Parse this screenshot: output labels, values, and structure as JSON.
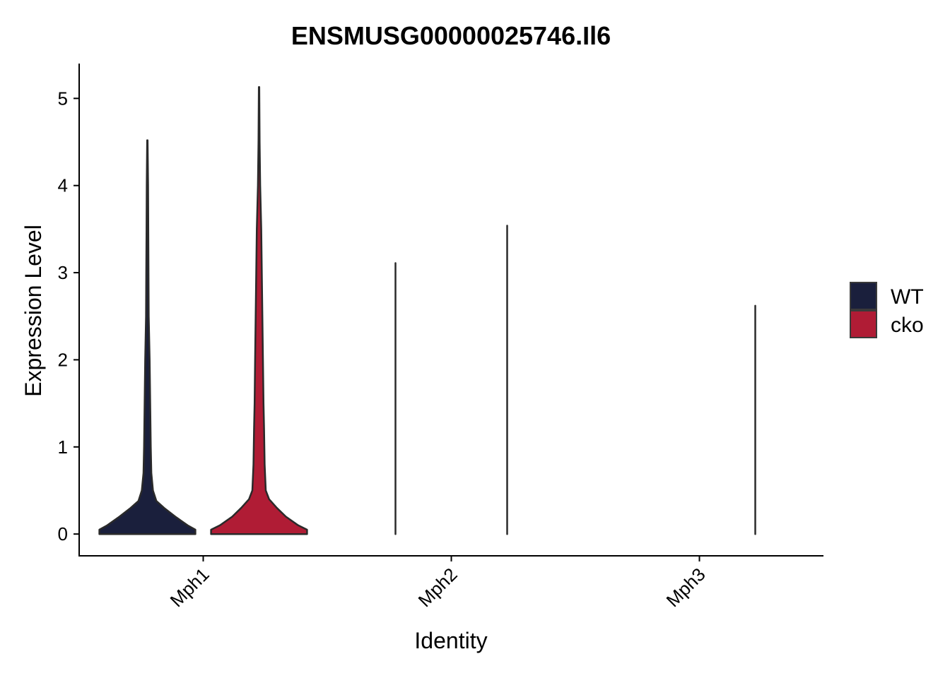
{
  "chart_data": {
    "type": "violin",
    "title": "ENSMUSG00000025746.Il6",
    "xlabel": "Identity",
    "ylabel": "Expression Level",
    "ylim": [
      -0.25,
      5.4
    ],
    "yticks": [
      0,
      1,
      2,
      3,
      4,
      5
    ],
    "categories": [
      "Mph1",
      "Mph2",
      "Mph3"
    ],
    "grid": false,
    "legend": {
      "position": "right",
      "entries": [
        "WT",
        "cko"
      ]
    },
    "series": [
      {
        "name": "WT",
        "color": "#1a1f3c",
        "max_values": [
          4.52,
          3.11,
          0.0
        ],
        "density_profile": [
          [
            [
              0.0,
              0.43
            ],
            [
              0.05,
              0.43
            ],
            [
              0.1,
              0.36
            ],
            [
              0.2,
              0.25
            ],
            [
              0.3,
              0.15
            ],
            [
              0.38,
              0.08
            ],
            [
              0.5,
              0.05
            ],
            [
              0.7,
              0.035
            ],
            [
              1.0,
              0.03
            ],
            [
              1.5,
              0.025
            ],
            [
              2.0,
              0.02
            ],
            [
              2.5,
              0.012
            ],
            [
              3.0,
              0.01
            ],
            [
              3.5,
              0.008
            ],
            [
              4.0,
              0.006
            ],
            [
              4.52,
              0.002
            ]
          ],
          [
            [
              0.0,
              0.0
            ],
            [
              0.01,
              0.0
            ],
            [
              3.11,
              0.0
            ]
          ],
          [
            [
              0.0,
              0.0
            ],
            [
              0.0,
              0.0
            ]
          ]
        ]
      },
      {
        "name": "cko",
        "color": "#b01c35",
        "max_values": [
          5.13,
          3.54,
          2.62
        ],
        "density_profile": [
          [
            [
              0.0,
              0.43
            ],
            [
              0.05,
              0.43
            ],
            [
              0.1,
              0.35
            ],
            [
              0.2,
              0.24
            ],
            [
              0.3,
              0.16
            ],
            [
              0.4,
              0.09
            ],
            [
              0.5,
              0.06
            ],
            [
              0.8,
              0.05
            ],
            [
              1.2,
              0.045
            ],
            [
              1.5,
              0.04
            ],
            [
              2.0,
              0.035
            ],
            [
              2.5,
              0.03
            ],
            [
              3.0,
              0.025
            ],
            [
              3.5,
              0.02
            ],
            [
              4.0,
              0.01
            ],
            [
              4.5,
              0.005
            ],
            [
              5.13,
              0.002
            ]
          ],
          [
            [
              0.0,
              0.0
            ],
            [
              0.01,
              0.0
            ],
            [
              3.54,
              0.0
            ]
          ],
          [
            [
              0.0,
              0.0
            ],
            [
              0.01,
              0.0
            ],
            [
              2.62,
              0.0
            ]
          ]
        ]
      }
    ]
  }
}
